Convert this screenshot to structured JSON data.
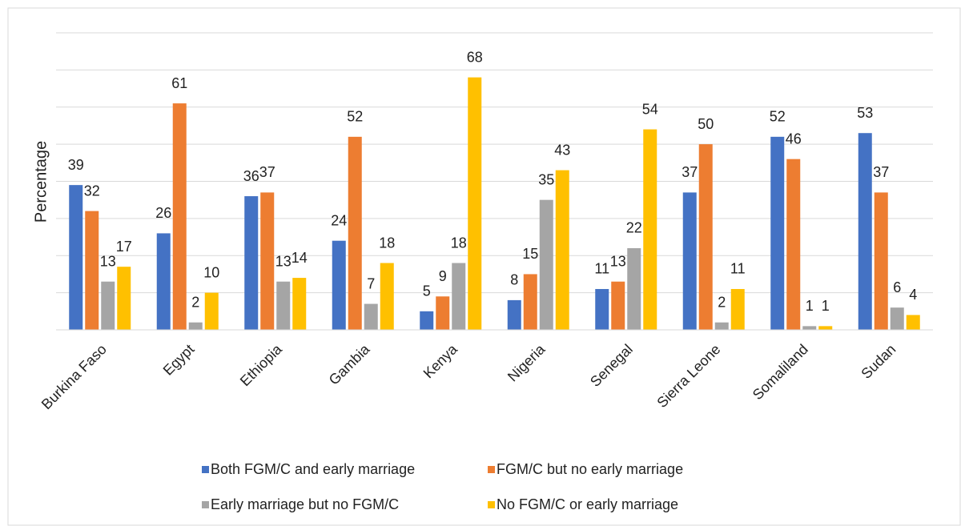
{
  "chart_data": {
    "type": "bar",
    "y_label": "Percentage",
    "categories": [
      "Burkina Faso",
      "Egypt",
      "Ethiopia",
      "Gambia",
      "Kenya",
      "Nigeria",
      "Senegal",
      "Sierra Leone",
      "Somaliland",
      "Sudan"
    ],
    "series": [
      {
        "name": "Both FGM/C and early marriage",
        "color": "#4472c4",
        "values": [
          39,
          26,
          36,
          24,
          5,
          8,
          11,
          37,
          52,
          53
        ]
      },
      {
        "name": "FGM/C but no early marriage",
        "color": "#ed7d31",
        "values": [
          32,
          61,
          37,
          52,
          9,
          15,
          13,
          50,
          46,
          37
        ]
      },
      {
        "name": "Early marriage but no FGM/C",
        "color": "#a5a5a5",
        "values": [
          13,
          2,
          13,
          7,
          18,
          35,
          22,
          2,
          1,
          6
        ]
      },
      {
        "name": "No FGM/C or early marriage",
        "color": "#ffc000",
        "values": [
          17,
          10,
          14,
          18,
          68,
          43,
          54,
          11,
          1,
          4
        ]
      }
    ],
    "ylim": [
      0,
      80
    ],
    "yticks": [
      0,
      10,
      20,
      30,
      40,
      50,
      60,
      70,
      80
    ],
    "grid": true,
    "legend": "bottom"
  }
}
